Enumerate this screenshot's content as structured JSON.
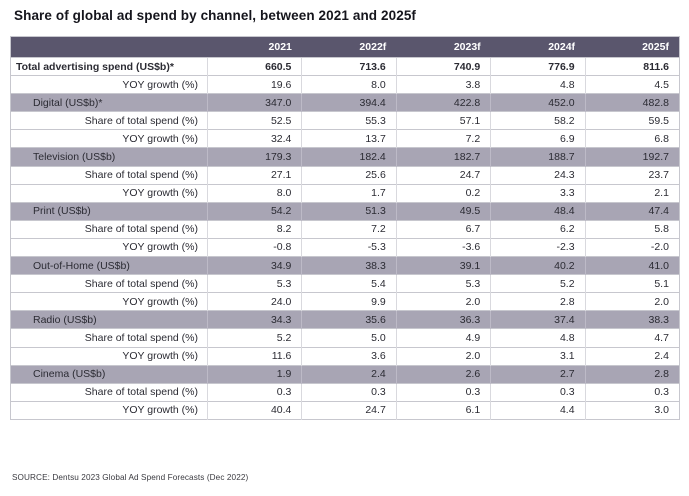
{
  "title": "Share of global ad spend by channel, between 2021 and 2025f",
  "source": "SOURCE: Dentsu 2023 Global Ad Spend Forecasts (Dec 2022)",
  "colors": {
    "header_bg": "#5a566d",
    "channel_row_bg": "#a8a5b4",
    "row_border": "#c7c7ce",
    "text": "#2b2b33",
    "header_text": "#ffffff"
  },
  "chart_data": {
    "type": "table",
    "columns": [
      "",
      "2021",
      "2022f",
      "2023f",
      "2024f",
      "2025f"
    ],
    "rows": [
      {
        "label": "Total advertising spend (US$b)*",
        "style": "total",
        "values": [
          "660.5",
          "713.6",
          "740.9",
          "776.9",
          "811.6"
        ]
      },
      {
        "label": "YOY growth (%)",
        "style": "sub",
        "values": [
          "19.6",
          "8.0",
          "3.8",
          "4.8",
          "4.5"
        ]
      },
      {
        "label": "Digital (US$b)*",
        "style": "channel",
        "values": [
          "347.0",
          "394.4",
          "422.8",
          "452.0",
          "482.8"
        ]
      },
      {
        "label": "Share of total spend (%)",
        "style": "sub",
        "values": [
          "52.5",
          "55.3",
          "57.1",
          "58.2",
          "59.5"
        ]
      },
      {
        "label": "YOY growth (%)",
        "style": "sub",
        "values": [
          "32.4",
          "13.7",
          "7.2",
          "6.9",
          "6.8"
        ]
      },
      {
        "label": "Television (US$b)",
        "style": "channel",
        "values": [
          "179.3",
          "182.4",
          "182.7",
          "188.7",
          "192.7"
        ]
      },
      {
        "label": "Share of total spend (%)",
        "style": "sub",
        "values": [
          "27.1",
          "25.6",
          "24.7",
          "24.3",
          "23.7"
        ]
      },
      {
        "label": "YOY growth (%)",
        "style": "sub",
        "values": [
          "8.0",
          "1.7",
          "0.2",
          "3.3",
          "2.1"
        ]
      },
      {
        "label": "Print (US$b)",
        "style": "channel",
        "values": [
          "54.2",
          "51.3",
          "49.5",
          "48.4",
          "47.4"
        ]
      },
      {
        "label": "Share of total spend (%)",
        "style": "sub",
        "values": [
          "8.2",
          "7.2",
          "6.7",
          "6.2",
          "5.8"
        ]
      },
      {
        "label": "YOY growth (%)",
        "style": "sub",
        "values": [
          "-0.8",
          "-5.3",
          "-3.6",
          "-2.3",
          "-2.0"
        ]
      },
      {
        "label": "Out-of-Home (US$b)",
        "style": "channel",
        "values": [
          "34.9",
          "38.3",
          "39.1",
          "40.2",
          "41.0"
        ]
      },
      {
        "label": "Share of total spend (%)",
        "style": "sub",
        "values": [
          "5.3",
          "5.4",
          "5.3",
          "5.2",
          "5.1"
        ]
      },
      {
        "label": "YOY growth (%)",
        "style": "sub",
        "values": [
          "24.0",
          "9.9",
          "2.0",
          "2.8",
          "2.0"
        ]
      },
      {
        "label": "Radio (US$b)",
        "style": "channel",
        "values": [
          "34.3",
          "35.6",
          "36.3",
          "37.4",
          "38.3"
        ]
      },
      {
        "label": "Share of total spend (%)",
        "style": "sub",
        "values": [
          "5.2",
          "5.0",
          "4.9",
          "4.8",
          "4.7"
        ]
      },
      {
        "label": "YOY growth (%)",
        "style": "sub",
        "values": [
          "11.6",
          "3.6",
          "2.0",
          "3.1",
          "2.4"
        ]
      },
      {
        "label": "Cinema (US$b)",
        "style": "channel",
        "values": [
          "1.9",
          "2.4",
          "2.6",
          "2.7",
          "2.8"
        ]
      },
      {
        "label": "Share of total spend (%)",
        "style": "sub",
        "values": [
          "0.3",
          "0.3",
          "0.3",
          "0.3",
          "0.3"
        ]
      },
      {
        "label": "YOY growth (%)",
        "style": "sub",
        "values": [
          "40.4",
          "24.7",
          "6.1",
          "4.4",
          "3.0"
        ]
      }
    ]
  }
}
